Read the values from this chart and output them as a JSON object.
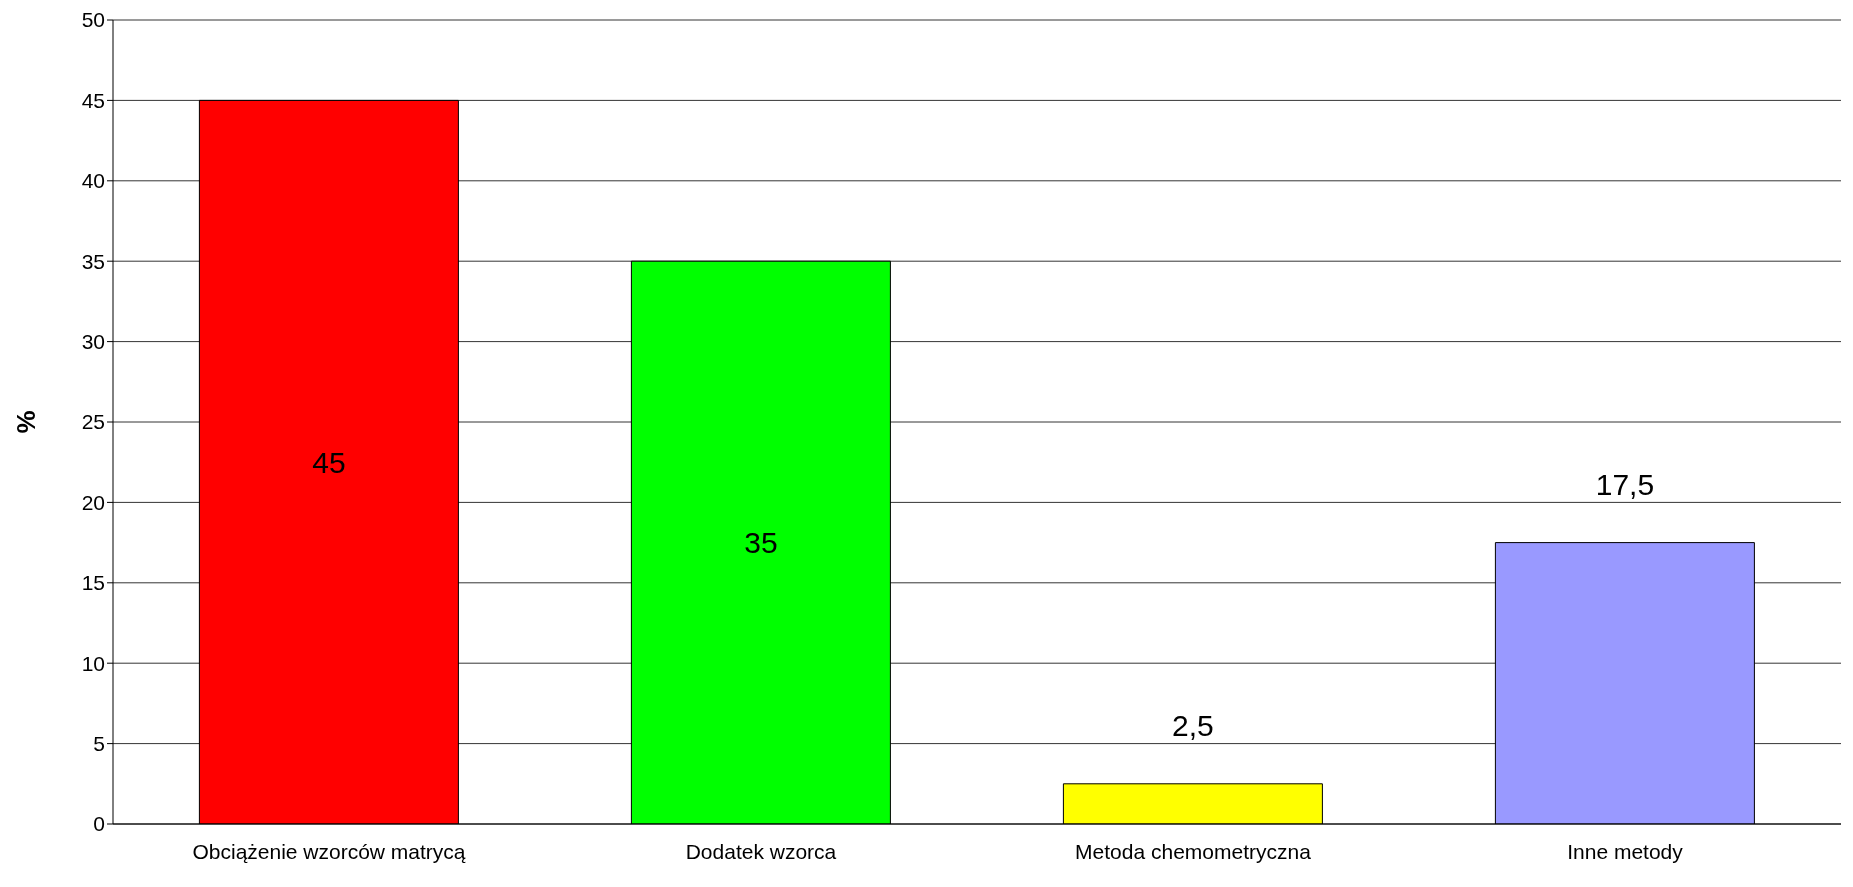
{
  "chart_data": {
    "type": "bar",
    "ylabel": "%",
    "categories": [
      "Obciążenie wzorców matrycą",
      "Dodatek wzorca",
      "Metoda chemometryczna",
      "Inne metody"
    ],
    "values": [
      45,
      35,
      2.5,
      17.5
    ],
    "colors": [
      "#ff0000",
      "#00ff00",
      "#ffff00",
      "#9999ff"
    ],
    "value_labels": [
      "45",
      "35",
      "2,5",
      "17,5"
    ],
    "ylim": [
      0,
      50
    ],
    "yticks": [
      0,
      5,
      10,
      15,
      20,
      25,
      30,
      35,
      40,
      45,
      50
    ],
    "grid": "y"
  }
}
